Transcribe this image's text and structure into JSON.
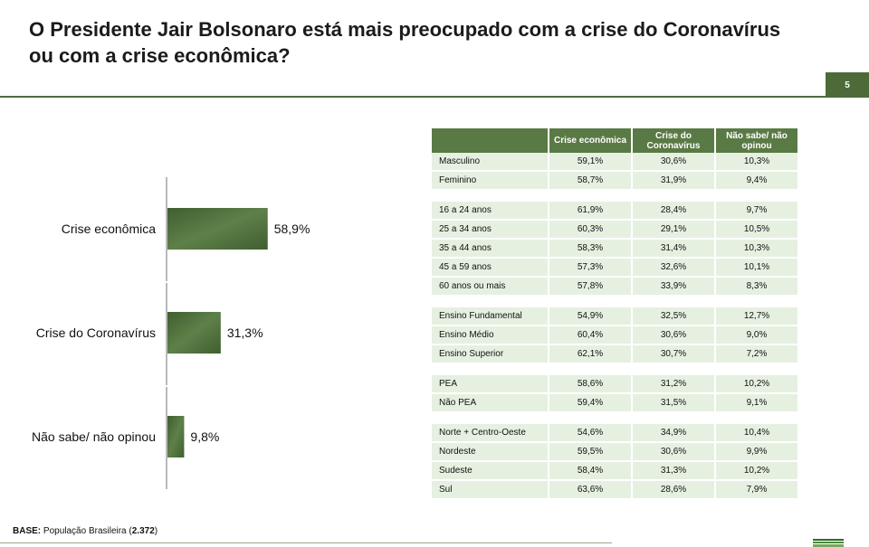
{
  "title": "O Presidente Jair Bolsonaro está mais preocupado com a crise do Coronavírus ou com a crise econômica?",
  "page_number": "5",
  "colors": {
    "bar": "#4a6b3a",
    "bar_light": "#6f8f5a",
    "header": "#5a7a45",
    "row": "#e6f0e1",
    "rule": "#4f6b3a"
  },
  "chart_data": {
    "type": "bar",
    "orientation": "horizontal",
    "title": "",
    "categories": [
      "Crise econômica",
      "Crise do Coronavírus",
      "Não sabe/ não opinou"
    ],
    "values": [
      58.9,
      31.3,
      9.8
    ],
    "value_labels": [
      "58,9%",
      "31,3%",
      "9,8%"
    ],
    "xlim": [
      0,
      100
    ]
  },
  "table": {
    "headers": [
      "",
      "Crise econômica",
      "Crise do Coronavírus",
      "Não sabe/ não opinou"
    ],
    "groups": [
      {
        "rows": [
          {
            "label": "Masculino",
            "values": [
              "59,1%",
              "30,6%",
              "10,3%"
            ]
          },
          {
            "label": "Feminino",
            "values": [
              "58,7%",
              "31,9%",
              "9,4%"
            ]
          }
        ]
      },
      {
        "rows": [
          {
            "label": "16 a 24 anos",
            "values": [
              "61,9%",
              "28,4%",
              "9,7%"
            ]
          },
          {
            "label": "25 a 34 anos",
            "values": [
              "60,3%",
              "29,1%",
              "10,5%"
            ]
          },
          {
            "label": "35 a 44 anos",
            "values": [
              "58,3%",
              "31,4%",
              "10,3%"
            ]
          },
          {
            "label": "45 a 59 anos",
            "values": [
              "57,3%",
              "32,6%",
              "10,1%"
            ]
          },
          {
            "label": "60 anos ou mais",
            "values": [
              "57,8%",
              "33,9%",
              "8,3%"
            ]
          }
        ]
      },
      {
        "rows": [
          {
            "label": "Ensino Fundamental",
            "values": [
              "54,9%",
              "32,5%",
              "12,7%"
            ]
          },
          {
            "label": "Ensino Médio",
            "values": [
              "60,4%",
              "30,6%",
              "9,0%"
            ]
          },
          {
            "label": "Ensino Superior",
            "values": [
              "62,1%",
              "30,7%",
              "7,2%"
            ]
          }
        ]
      },
      {
        "rows": [
          {
            "label": "PEA",
            "values": [
              "58,6%",
              "31,2%",
              "10,2%"
            ]
          },
          {
            "label": "Não PEA",
            "values": [
              "59,4%",
              "31,5%",
              "9,1%"
            ]
          }
        ]
      },
      {
        "rows": [
          {
            "label": "Norte + Centro-Oeste",
            "values": [
              "54,6%",
              "34,9%",
              "10,4%"
            ]
          },
          {
            "label": "Nordeste",
            "values": [
              "59,5%",
              "30,6%",
              "9,9%"
            ]
          },
          {
            "label": "Sudeste",
            "values": [
              "58,4%",
              "31,3%",
              "10,2%"
            ]
          },
          {
            "label": "Sul",
            "values": [
              "63,6%",
              "28,6%",
              "7,9%"
            ]
          }
        ]
      }
    ]
  },
  "footnote": {
    "label": "BASE:",
    "text": " População Brasileira (",
    "count": "2.372",
    "close": ")"
  }
}
